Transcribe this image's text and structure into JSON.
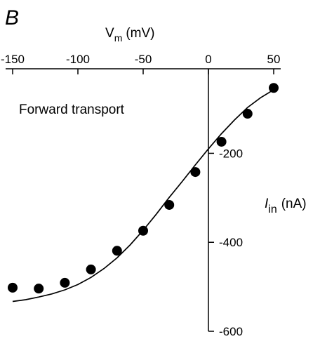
{
  "panel_label": "B",
  "chart_data": {
    "type": "scatter",
    "annotation": "Forward transport",
    "x_axis": {
      "label_main": "V",
      "label_sub": "m",
      "label_unit": "(mV)",
      "range": [
        -150,
        50
      ],
      "ticks": [
        -150,
        -100,
        -50,
        0,
        50
      ],
      "tick_labels": [
        "-150",
        "-100",
        "-50",
        "0",
        "50"
      ],
      "position": "top"
    },
    "y_axis": {
      "label_main": "I",
      "label_sub": "in",
      "label_unit": "(nA)",
      "range": [
        -600,
        -10
      ],
      "ticks": [
        -200,
        -400,
        -600
      ],
      "tick_labels": [
        "-200",
        "-400",
        "-600"
      ],
      "position": "right of zero"
    },
    "grid": false,
    "series": [
      {
        "kind": "points",
        "x": [
          -150,
          -130,
          -110,
          -90,
          -70,
          -50,
          -30,
          -10,
          10,
          30,
          50
        ],
        "y": [
          -502,
          -504,
          -491,
          -461,
          -419,
          -374,
          -316,
          -242,
          -174,
          -111,
          -53
        ]
      },
      {
        "kind": "fit-line",
        "x": [
          -150,
          -140,
          -130,
          -120,
          -110,
          -100,
          -90,
          -80,
          -70,
          -60,
          -50,
          -40,
          -30,
          -20,
          -10,
          0,
          10,
          20,
          30,
          40,
          50
        ],
        "y": [
          -533,
          -529,
          -523,
          -516,
          -507,
          -495,
          -479,
          -459,
          -435,
          -406,
          -373,
          -337,
          -299,
          -263,
          -226,
          -190,
          -156,
          -125,
          -97,
          -75,
          -57
        ]
      }
    ]
  }
}
